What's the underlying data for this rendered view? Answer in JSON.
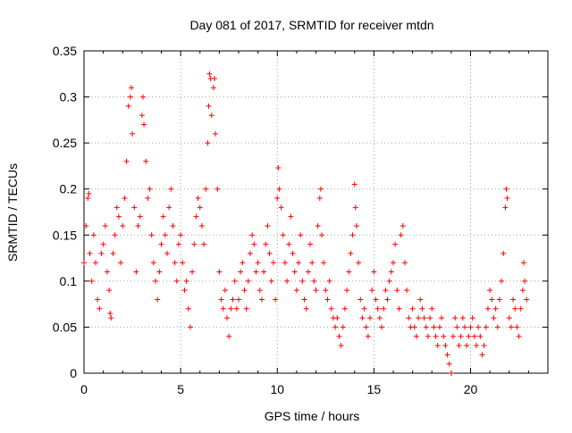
{
  "chart_data": {
    "type": "scatter",
    "title": "Day 081 of 2017, SRMTID for receiver mtdn",
    "xlabel": "GPS time / hours",
    "ylabel": "SRMTID / TECUs",
    "xlim": [
      0,
      24
    ],
    "ylim": [
      0,
      0.35
    ],
    "x_ticks": [
      0,
      5,
      10,
      15,
      20
    ],
    "x_tick_labels": [
      "0",
      "5",
      "10",
      "15",
      "20"
    ],
    "y_ticks": [
      0,
      0.05,
      0.1,
      0.15,
      0.2,
      0.25,
      0.3,
      0.35
    ],
    "y_tick_labels": [
      "0",
      "0.05",
      "0.1",
      "0.15",
      "0.2",
      "0.25",
      "0.3",
      "0.35"
    ],
    "grid": true,
    "marker": "+",
    "marker_color": "#ff0000",
    "series": [
      {
        "name": "SRMTID",
        "color": "#ff0000",
        "points": [
          [
            0.0,
            0.12
          ],
          [
            0.1,
            0.16
          ],
          [
            0.2,
            0.19
          ],
          [
            0.25,
            0.195
          ],
          [
            0.3,
            0.13
          ],
          [
            0.4,
            0.1
          ],
          [
            0.5,
            0.15
          ],
          [
            0.6,
            0.12
          ],
          [
            0.7,
            0.08
          ],
          [
            0.8,
            0.07
          ],
          [
            0.9,
            0.13
          ],
          [
            1.0,
            0.14
          ],
          [
            1.1,
            0.16
          ],
          [
            1.2,
            0.11
          ],
          [
            1.3,
            0.09
          ],
          [
            1.35,
            0.065
          ],
          [
            1.4,
            0.06
          ],
          [
            1.5,
            0.13
          ],
          [
            1.6,
            0.15
          ],
          [
            1.7,
            0.18
          ],
          [
            1.8,
            0.17
          ],
          [
            1.9,
            0.12
          ],
          [
            2.0,
            0.16
          ],
          [
            2.1,
            0.19
          ],
          [
            2.2,
            0.23
          ],
          [
            2.3,
            0.29
          ],
          [
            2.4,
            0.3
          ],
          [
            2.45,
            0.31
          ],
          [
            2.5,
            0.26
          ],
          [
            2.6,
            0.18
          ],
          [
            2.7,
            0.11
          ],
          [
            2.8,
            0.16
          ],
          [
            2.9,
            0.17
          ],
          [
            3.0,
            0.28
          ],
          [
            3.05,
            0.3
          ],
          [
            3.1,
            0.27
          ],
          [
            3.2,
            0.23
          ],
          [
            3.3,
            0.19
          ],
          [
            3.4,
            0.2
          ],
          [
            3.5,
            0.15
          ],
          [
            3.6,
            0.12
          ],
          [
            3.7,
            0.1
          ],
          [
            3.8,
            0.08
          ],
          [
            3.9,
            0.11
          ],
          [
            4.0,
            0.14
          ],
          [
            4.1,
            0.17
          ],
          [
            4.2,
            0.15
          ],
          [
            4.3,
            0.13
          ],
          [
            4.4,
            0.18
          ],
          [
            4.5,
            0.2
          ],
          [
            4.6,
            0.16
          ],
          [
            4.7,
            0.12
          ],
          [
            4.8,
            0.1
          ],
          [
            4.9,
            0.14
          ],
          [
            5.0,
            0.15
          ],
          [
            5.1,
            0.12
          ],
          [
            5.2,
            0.09
          ],
          [
            5.3,
            0.1
          ],
          [
            5.4,
            0.07
          ],
          [
            5.5,
            0.05
          ],
          [
            5.6,
            0.11
          ],
          [
            5.7,
            0.14
          ],
          [
            5.8,
            0.17
          ],
          [
            5.9,
            0.19
          ],
          [
            6.0,
            0.18
          ],
          [
            6.1,
            0.16
          ],
          [
            6.2,
            0.14
          ],
          [
            6.3,
            0.2
          ],
          [
            6.4,
            0.25
          ],
          [
            6.45,
            0.29
          ],
          [
            6.5,
            0.325
          ],
          [
            6.55,
            0.32
          ],
          [
            6.6,
            0.28
          ],
          [
            6.7,
            0.31
          ],
          [
            6.75,
            0.32
          ],
          [
            6.8,
            0.26
          ],
          [
            6.9,
            0.2
          ],
          [
            7.0,
            0.11
          ],
          [
            7.1,
            0.08
          ],
          [
            7.2,
            0.07
          ],
          [
            7.3,
            0.09
          ],
          [
            7.4,
            0.06
          ],
          [
            7.5,
            0.04
          ],
          [
            7.6,
            0.07
          ],
          [
            7.7,
            0.08
          ],
          [
            7.8,
            0.1
          ],
          [
            7.9,
            0.07
          ],
          [
            8.0,
            0.08
          ],
          [
            8.1,
            0.11
          ],
          [
            8.2,
            0.12
          ],
          [
            8.3,
            0.09
          ],
          [
            8.4,
            0.07
          ],
          [
            8.5,
            0.1
          ],
          [
            8.6,
            0.13
          ],
          [
            8.7,
            0.15
          ],
          [
            8.8,
            0.14
          ],
          [
            8.9,
            0.11
          ],
          [
            9.0,
            0.12
          ],
          [
            9.1,
            0.09
          ],
          [
            9.2,
            0.08
          ],
          [
            9.3,
            0.11
          ],
          [
            9.4,
            0.14
          ],
          [
            9.5,
            0.16
          ],
          [
            9.6,
            0.13
          ],
          [
            9.7,
            0.1
          ],
          [
            9.8,
            0.12
          ],
          [
            9.9,
            0.08
          ],
          [
            10.0,
            0.19
          ],
          [
            10.05,
            0.223
          ],
          [
            10.1,
            0.2
          ],
          [
            10.2,
            0.18
          ],
          [
            10.3,
            0.15
          ],
          [
            10.4,
            0.12
          ],
          [
            10.5,
            0.1
          ],
          [
            10.6,
            0.14
          ],
          [
            10.7,
            0.17
          ],
          [
            10.8,
            0.13
          ],
          [
            10.9,
            0.11
          ],
          [
            11.0,
            0.09
          ],
          [
            11.1,
            0.12
          ],
          [
            11.2,
            0.15
          ],
          [
            11.3,
            0.1
          ],
          [
            11.4,
            0.08
          ],
          [
            11.5,
            0.07
          ],
          [
            11.6,
            0.11
          ],
          [
            11.7,
            0.14
          ],
          [
            11.8,
            0.12
          ],
          [
            11.9,
            0.1
          ],
          [
            12.0,
            0.09
          ],
          [
            12.1,
            0.16
          ],
          [
            12.2,
            0.19
          ],
          [
            12.25,
            0.2
          ],
          [
            12.3,
            0.15
          ],
          [
            12.4,
            0.12
          ],
          [
            12.5,
            0.09
          ],
          [
            12.6,
            0.08
          ],
          [
            12.7,
            0.1
          ],
          [
            12.8,
            0.07
          ],
          [
            12.9,
            0.06
          ],
          [
            13.0,
            0.05
          ],
          [
            13.1,
            0.06
          ],
          [
            13.2,
            0.04
          ],
          [
            13.3,
            0.03
          ],
          [
            13.4,
            0.05
          ],
          [
            13.5,
            0.07
          ],
          [
            13.6,
            0.09
          ],
          [
            13.7,
            0.11
          ],
          [
            13.8,
            0.13
          ],
          [
            13.9,
            0.15
          ],
          [
            14.0,
            0.205
          ],
          [
            14.05,
            0.18
          ],
          [
            14.1,
            0.16
          ],
          [
            14.2,
            0.12
          ],
          [
            14.3,
            0.08
          ],
          [
            14.4,
            0.06
          ],
          [
            14.5,
            0.07
          ],
          [
            14.6,
            0.05
          ],
          [
            14.7,
            0.04
          ],
          [
            14.8,
            0.06
          ],
          [
            14.9,
            0.09
          ],
          [
            15.0,
            0.11
          ],
          [
            15.1,
            0.08
          ],
          [
            15.2,
            0.07
          ],
          [
            15.3,
            0.06
          ],
          [
            15.4,
            0.05
          ],
          [
            15.5,
            0.07
          ],
          [
            15.6,
            0.09
          ],
          [
            15.7,
            0.08
          ],
          [
            15.8,
            0.1
          ],
          [
            15.9,
            0.11
          ],
          [
            16.0,
            0.12
          ],
          [
            16.1,
            0.14
          ],
          [
            16.2,
            0.09
          ],
          [
            16.3,
            0.07
          ],
          [
            16.4,
            0.15
          ],
          [
            16.5,
            0.16
          ],
          [
            16.6,
            0.12
          ],
          [
            16.7,
            0.09
          ],
          [
            16.8,
            0.06
          ],
          [
            16.9,
            0.05
          ],
          [
            17.0,
            0.07
          ],
          [
            17.1,
            0.05
          ],
          [
            17.2,
            0.04
          ],
          [
            17.3,
            0.06
          ],
          [
            17.4,
            0.08
          ],
          [
            17.5,
            0.07
          ],
          [
            17.6,
            0.06
          ],
          [
            17.7,
            0.05
          ],
          [
            17.8,
            0.04
          ],
          [
            17.9,
            0.06
          ],
          [
            18.0,
            0.07
          ],
          [
            18.1,
            0.05
          ],
          [
            18.2,
            0.04
          ],
          [
            18.3,
            0.03
          ],
          [
            18.4,
            0.05
          ],
          [
            18.5,
            0.06
          ],
          [
            18.6,
            0.04
          ],
          [
            18.7,
            0.03
          ],
          [
            18.8,
            0.02
          ],
          [
            18.9,
            0.01
          ],
          [
            19.0,
            0.0
          ],
          [
            19.1,
            0.04
          ],
          [
            19.2,
            0.06
          ],
          [
            19.3,
            0.05
          ],
          [
            19.4,
            0.03
          ],
          [
            19.5,
            0.04
          ],
          [
            19.6,
            0.06
          ],
          [
            19.7,
            0.05
          ],
          [
            19.8,
            0.03
          ],
          [
            19.9,
            0.04
          ],
          [
            20.0,
            0.05
          ],
          [
            20.1,
            0.06
          ],
          [
            20.2,
            0.04
          ],
          [
            20.3,
            0.03
          ],
          [
            20.4,
            0.05
          ],
          [
            20.5,
            0.04
          ],
          [
            20.6,
            0.02
          ],
          [
            20.7,
            0.03
          ],
          [
            20.8,
            0.05
          ],
          [
            20.9,
            0.07
          ],
          [
            21.0,
            0.09
          ],
          [
            21.1,
            0.08
          ],
          [
            21.2,
            0.06
          ],
          [
            21.3,
            0.07
          ],
          [
            21.4,
            0.05
          ],
          [
            21.5,
            0.08
          ],
          [
            21.6,
            0.1
          ],
          [
            21.7,
            0.13
          ],
          [
            21.8,
            0.18
          ],
          [
            21.85,
            0.2
          ],
          [
            21.9,
            0.19
          ],
          [
            22.0,
            0.06
          ],
          [
            22.1,
            0.05
          ],
          [
            22.2,
            0.08
          ],
          [
            22.3,
            0.07
          ],
          [
            22.4,
            0.05
          ],
          [
            22.5,
            0.04
          ],
          [
            22.6,
            0.07
          ],
          [
            22.7,
            0.09
          ],
          [
            22.75,
            0.12
          ],
          [
            22.8,
            0.1
          ],
          [
            22.9,
            0.08
          ]
        ]
      }
    ]
  }
}
